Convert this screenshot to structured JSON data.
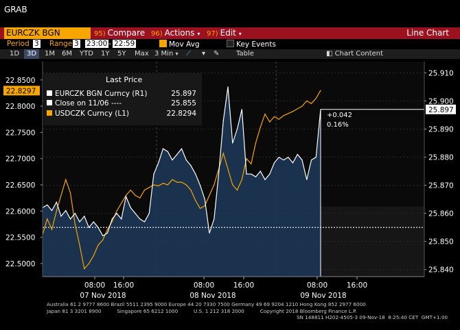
{
  "window_title": "GRAB",
  "toolbar": {
    "ticker": "EURCZK BGN Curncy",
    "compare_num": "95)",
    "compare": "Compare",
    "actions_num": "96)",
    "actions": "Actions",
    "edit_num": "97)",
    "edit": "Edit",
    "view": "Line Chart"
  },
  "settings": {
    "period_label": "Period",
    "period_value": "3",
    "range_label": "Range",
    "range_value": "3",
    "time_start": "23:00",
    "time_end": "22:59",
    "mov_avg": "Mov Avg",
    "key_events": "Key Events"
  },
  "ranges": [
    "1D",
    "3D",
    "1M",
    "6M",
    "YTD",
    "1Y",
    "5Y",
    "Max"
  ],
  "selected_range": "3D",
  "interval": "3 Min",
  "table_label": "Table",
  "chart_content_label": "Chart Content",
  "legend": {
    "header": "Last Price",
    "rows": [
      {
        "name": "EURCZK BGN Curncy  (R1)",
        "value": "25.897",
        "color": "#ffffff"
      },
      {
        "name": "Close on 11/06 ----",
        "value": "25.855",
        "color": "#ffffff"
      },
      {
        "name": "USDCZK Curncy  (L1)",
        "value": "22.8294",
        "color": "#f7a600"
      }
    ]
  },
  "annotation": {
    "change": "+0.042",
    "pct": "0.16%"
  },
  "chart_data": {
    "type": "line",
    "title": "",
    "left_axis": {
      "ticks": [
        "22.8500",
        "22.8000",
        "22.7500",
        "22.7000",
        "22.6500",
        "22.6000",
        "22.5500",
        "22.5000"
      ],
      "ylim": [
        22.475,
        22.885
      ],
      "last_label": "22.8297"
    },
    "right_axis": {
      "ticks": [
        "25.910",
        "25.900",
        "25.890",
        "25.880",
        "25.870",
        "25.860",
        "25.850",
        "25.840"
      ],
      "ylim": [
        25.8375,
        25.914
      ],
      "last_label": "25.897"
    },
    "close_level": 25.855,
    "x_ticks": [
      "08:00",
      "16:00",
      "08:00",
      "16:00",
      "08:00",
      "16:00"
    ],
    "date_labels": [
      "07 Nov 2018",
      "08 Nov 2018",
      "09 Nov 2018"
    ],
    "series": [
      {
        "name": "EURCZK BGN Curncy",
        "axis": "right",
        "points": [
          [
            0,
            25.862
          ],
          [
            1,
            25.863
          ],
          [
            2,
            25.861
          ],
          [
            3,
            25.864
          ],
          [
            4,
            25.859
          ],
          [
            5,
            25.861
          ],
          [
            6,
            25.858
          ],
          [
            7,
            25.86
          ],
          [
            8,
            25.857
          ],
          [
            9,
            25.859
          ],
          [
            10,
            25.855
          ],
          [
            11,
            25.857
          ],
          [
            12,
            25.855
          ],
          [
            13,
            25.852
          ],
          [
            14,
            25.853
          ],
          [
            15,
            25.858
          ],
          [
            16,
            25.86
          ],
          [
            17,
            25.858
          ],
          [
            18,
            25.866
          ],
          [
            19,
            25.862
          ],
          [
            20,
            25.86
          ],
          [
            21,
            25.858
          ],
          [
            22,
            25.857
          ],
          [
            23,
            25.86
          ],
          [
            24,
            25.874
          ],
          [
            25,
            25.878
          ],
          [
            26,
            25.883
          ],
          [
            27,
            25.882
          ],
          [
            28,
            25.879
          ],
          [
            29,
            25.881
          ],
          [
            30,
            25.883
          ],
          [
            31,
            25.879
          ],
          [
            32,
            25.877
          ],
          [
            33,
            25.874
          ],
          [
            34,
            25.87
          ],
          [
            35,
            25.865
          ],
          [
            36,
            25.853
          ],
          [
            37,
            25.858
          ],
          [
            38,
            25.874
          ],
          [
            39,
            25.893
          ],
          [
            40,
            25.905
          ],
          [
            41,
            25.885
          ],
          [
            42,
            25.89
          ],
          [
            43,
            25.897
          ],
          [
            44,
            25.874
          ],
          [
            45,
            25.874
          ],
          [
            46,
            25.873
          ],
          [
            47,
            25.875
          ],
          [
            48,
            25.872
          ],
          [
            49,
            25.874
          ],
          [
            50,
            25.878
          ],
          [
            51,
            25.88
          ],
          [
            52,
            25.879
          ],
          [
            53,
            25.88
          ],
          [
            54,
            25.878
          ],
          [
            55,
            25.881
          ],
          [
            56,
            25.879
          ],
          [
            57,
            25.872
          ],
          [
            58,
            25.879
          ],
          [
            59,
            25.88
          ],
          [
            60,
            25.897
          ]
        ]
      },
      {
        "name": "USDCZK Curncy",
        "axis": "left",
        "points": [
          [
            0,
            22.555
          ],
          [
            1,
            22.585
          ],
          [
            2,
            22.565
          ],
          [
            3,
            22.6
          ],
          [
            4,
            22.63
          ],
          [
            5,
            22.66
          ],
          [
            6,
            22.635
          ],
          [
            7,
            22.575
          ],
          [
            8,
            22.535
          ],
          [
            9,
            22.49
          ],
          [
            10,
            22.5
          ],
          [
            11,
            22.515
          ],
          [
            12,
            22.535
          ],
          [
            13,
            22.545
          ],
          [
            14,
            22.565
          ],
          [
            15,
            22.58
          ],
          [
            16,
            22.6
          ],
          [
            17,
            22.615
          ],
          [
            18,
            22.63
          ],
          [
            19,
            22.64
          ],
          [
            20,
            22.63
          ],
          [
            21,
            22.625
          ],
          [
            22,
            22.64
          ],
          [
            23,
            22.645
          ],
          [
            24,
            22.65
          ],
          [
            25,
            22.648
          ],
          [
            26,
            22.653
          ],
          [
            27,
            22.65
          ],
          [
            28,
            22.66
          ],
          [
            29,
            22.655
          ],
          [
            30,
            22.655
          ],
          [
            31,
            22.65
          ],
          [
            32,
            22.64
          ],
          [
            33,
            22.62
          ],
          [
            34,
            22.605
          ],
          [
            35,
            22.61
          ],
          [
            36,
            22.63
          ],
          [
            37,
            22.65
          ],
          [
            38,
            22.68
          ],
          [
            39,
            22.71
          ],
          [
            40,
            22.68
          ],
          [
            41,
            22.65
          ],
          [
            42,
            22.64
          ],
          [
            43,
            22.66
          ],
          [
            44,
            22.7
          ],
          [
            45,
            22.69
          ],
          [
            46,
            22.73
          ],
          [
            47,
            22.76
          ],
          [
            48,
            22.785
          ],
          [
            49,
            22.77
          ],
          [
            50,
            22.78
          ],
          [
            51,
            22.775
          ],
          [
            52,
            22.782
          ],
          [
            53,
            22.786
          ],
          [
            54,
            22.79
          ],
          [
            55,
            22.795
          ],
          [
            56,
            22.8
          ],
          [
            57,
            22.81
          ],
          [
            58,
            22.805
          ],
          [
            59,
            22.815
          ],
          [
            60,
            22.83
          ]
        ]
      }
    ]
  },
  "footer": {
    "line1": "Australia 61 2 9777 8600 Brazil 5511 2395 9000 Europe 44 20 7330 7500 Germany 49 69 9204 1210 Hong Kong 852 2977 6000",
    "line2": "Japan 81 3 3201 8900          Singapore 65 6212 1000          U.S. 1 212 318 2000          Copyright 2018 Bloomberg Finance L.P.",
    "line3": "SN 148811 H202-4505-3 09-Nov-18  8:25:40 CET  GMT+1:00"
  }
}
